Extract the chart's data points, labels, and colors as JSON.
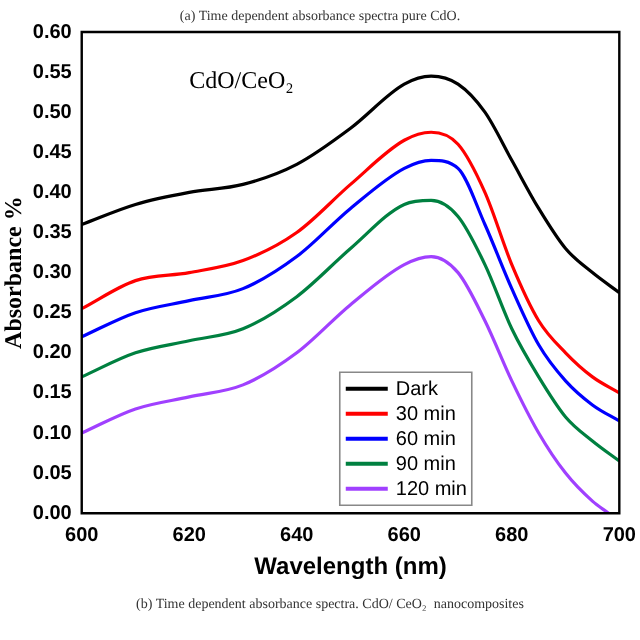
{
  "chart_data": {
    "type": "line",
    "title": "(a) Time dependent absorbance spectra pure CdO.",
    "xlabel": "Wavelength (nm)",
    "ylabel": "Absorbance %",
    "annotations": [
      "CdO/CeO₂",
      "(b) Time dependent absorbance spectra. CdO/ CeO₂  nanocomposites"
    ],
    "x": [
      600,
      610,
      620,
      630,
      640,
      650,
      660,
      665,
      670,
      675,
      680,
      685,
      690,
      695,
      700
    ],
    "series": [
      {
        "name": "Dark",
        "color": "#000000",
        "values": [
          0.36,
          0.385,
          0.4,
          0.41,
          0.435,
          0.48,
          0.535,
          0.545,
          0.535,
          0.5,
          0.44,
          0.38,
          0.33,
          0.3,
          0.275
        ]
      },
      {
        "name": "30 min",
        "color": "#ff0000",
        "values": [
          0.255,
          0.29,
          0.3,
          0.315,
          0.35,
          0.41,
          0.465,
          0.475,
          0.46,
          0.4,
          0.31,
          0.24,
          0.2,
          0.17,
          0.15
        ]
      },
      {
        "name": "60 min",
        "color": "#0000ff",
        "values": [
          0.22,
          0.25,
          0.265,
          0.28,
          0.32,
          0.38,
          0.43,
          0.44,
          0.43,
          0.36,
          0.28,
          0.21,
          0.165,
          0.135,
          0.115
        ]
      },
      {
        "name": "90 min",
        "color": "#008040",
        "values": [
          0.17,
          0.2,
          0.215,
          0.23,
          0.27,
          0.33,
          0.385,
          0.39,
          0.37,
          0.31,
          0.23,
          0.17,
          0.12,
          0.09,
          0.065
        ]
      },
      {
        "name": "120 min",
        "color": "#a040ff",
        "x": [
          600,
          610,
          620,
          630,
          640,
          650,
          660,
          665,
          670,
          675,
          680,
          685,
          690,
          695,
          698
        ],
        "values": [
          0.1,
          0.13,
          0.145,
          0.16,
          0.2,
          0.26,
          0.31,
          0.32,
          0.3,
          0.24,
          0.165,
          0.1,
          0.05,
          0.015,
          0.0
        ]
      }
    ],
    "xlim": [
      600,
      700
    ],
    "xticks": [
      600,
      620,
      640,
      660,
      680,
      700
    ],
    "ylim": [
      0,
      0.6
    ],
    "yticks": [
      {
        "value": 0,
        "label": "0.00"
      },
      {
        "value": 0.05,
        "label": "0.05"
      },
      {
        "value": 0.1,
        "label": "0.10"
      },
      {
        "value": 0.15,
        "label": "0.15"
      },
      {
        "value": 0.2,
        "label": "0.20"
      },
      {
        "value": 0.25,
        "label": "0.25"
      },
      {
        "value": 0.3,
        "label": "0.30"
      },
      {
        "value": 0.35,
        "label": "0.35"
      },
      {
        "value": 0.4,
        "label": "0.40"
      },
      {
        "value": 0.45,
        "label": "0.45"
      },
      {
        "value": 0.5,
        "label": "0.50"
      },
      {
        "value": 0.55,
        "label": "0.55"
      },
      {
        "value": 0.6,
        "label": "0.60"
      }
    ],
    "grid": false,
    "legend": "bottom",
    "marker": "none",
    "line_style": "solid"
  }
}
